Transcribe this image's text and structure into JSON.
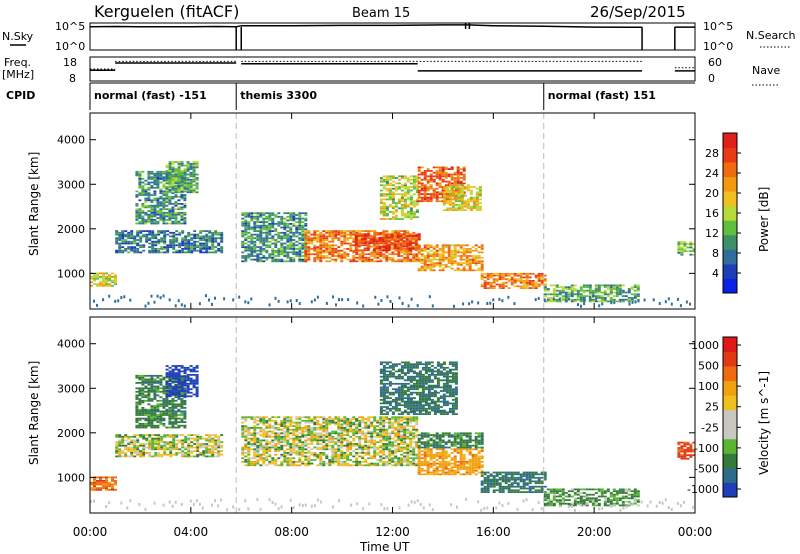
{
  "header": {
    "station": "Kerguelen (fitACF)",
    "beam": "Beam 15",
    "date": "26/Sep/2015"
  },
  "time_axis": {
    "label": "Time UT",
    "range_hours": [
      0,
      24
    ],
    "ticks": [
      {
        "h": 0,
        "label": "00:00"
      },
      {
        "h": 4,
        "label": "04:00"
      },
      {
        "h": 8,
        "label": "08:00"
      },
      {
        "h": 12,
        "label": "12:00"
      },
      {
        "h": 16,
        "label": "16:00"
      },
      {
        "h": 20,
        "label": "20:00"
      },
      {
        "h": 24,
        "label": "00:00"
      }
    ],
    "mode_boundaries_hours": [
      5.8,
      18.0
    ]
  },
  "noise_panel": {
    "left_label": "N.Sky",
    "right_label": "N.Search",
    "left_ticks": [
      "10^5",
      "10^0"
    ],
    "right_ticks": [
      "10^5",
      "10^0"
    ],
    "sky_level_fraction": [
      [
        0.0,
        0.86
      ],
      [
        1.0,
        0.87
      ],
      [
        2.0,
        0.86
      ],
      [
        3.0,
        0.86
      ],
      [
        4.0,
        0.86
      ],
      [
        5.0,
        0.87
      ],
      [
        5.8,
        0.86
      ],
      [
        6.0,
        0.9
      ],
      [
        8.0,
        0.9
      ],
      [
        10.0,
        0.91
      ],
      [
        12.0,
        0.91
      ],
      [
        14.0,
        0.93
      ],
      [
        15.0,
        0.93
      ],
      [
        16.0,
        0.9
      ],
      [
        18.0,
        0.88
      ],
      [
        20.0,
        0.85
      ],
      [
        21.9,
        0.84
      ]
    ],
    "gaps_hours": [
      [
        5.8,
        6.0
      ],
      [
        21.9,
        23.2
      ]
    ],
    "after_gap": [
      [
        23.2,
        0.85
      ],
      [
        24.0,
        0.85
      ]
    ]
  },
  "freq_panel": {
    "left_label": "Freq.",
    "left_unit": "[MHz]",
    "right_label": "Nave",
    "left_ticks": [
      "18",
      "8"
    ],
    "right_ticks": [
      "60",
      "0"
    ],
    "freq_segments": [
      {
        "from": 0.0,
        "to": 1.0,
        "level": 0.45
      },
      {
        "from": 1.0,
        "to": 5.8,
        "level": 0.75
      },
      {
        "from": 6.0,
        "to": 13.0,
        "level": 0.72
      },
      {
        "from": 13.0,
        "to": 21.9,
        "level": 0.42
      },
      {
        "from": 23.2,
        "to": 24.0,
        "level": 0.42
      }
    ],
    "nave_segments": [
      {
        "from": 0.0,
        "to": 1.0,
        "level": 0.5
      },
      {
        "from": 1.0,
        "to": 5.8,
        "level": 0.82
      },
      {
        "from": 6.0,
        "to": 21.9,
        "level": 0.82
      },
      {
        "from": 23.2,
        "to": 24.0,
        "level": 0.55
      }
    ]
  },
  "cpid": {
    "label": "CPID",
    "modes": [
      {
        "start_hour": 0.0,
        "text": "normal (fast) -151"
      },
      {
        "start_hour": 5.8,
        "text": "themis 3300"
      },
      {
        "start_hour": 18.0,
        "text": "normal (fast) 151"
      }
    ]
  },
  "chart_data": [
    {
      "type": "heatmap",
      "quantity": "Power",
      "ylabel": "Slant Range [km]",
      "ylim": [
        200,
        4600
      ],
      "yticks": [
        1000,
        2000,
        3000,
        4000
      ],
      "colorbar": {
        "label": "Power [dB]",
        "range": [
          0,
          32
        ],
        "ticks": [
          4,
          8,
          12,
          16,
          20,
          24,
          28
        ],
        "colors": [
          "#0a20e6",
          "#1c3fb8",
          "#2f6e9a",
          "#3c8f66",
          "#5fbf3c",
          "#b8d93a",
          "#f0c020",
          "#f09a10",
          "#f06a10",
          "#e83a14",
          "#e0201a"
        ]
      },
      "regions": [
        {
          "t": [
            0.0,
            1.0
          ],
          "r": [
            700,
            1000
          ],
          "v": 18
        },
        {
          "t": [
            1.0,
            5.2
          ],
          "r": [
            1450,
            1950
          ],
          "v": 8
        },
        {
          "t": [
            1.8,
            3.8
          ],
          "r": [
            2100,
            3300
          ],
          "v": 10
        },
        {
          "t": [
            3.0,
            4.3
          ],
          "r": [
            2800,
            3500
          ],
          "v": 12
        },
        {
          "t": [
            6.0,
            8.5
          ],
          "r": [
            1250,
            2350
          ],
          "v": 10
        },
        {
          "t": [
            8.5,
            13.0
          ],
          "r": [
            1250,
            1950
          ],
          "v": 24
        },
        {
          "t": [
            10.5,
            13.0
          ],
          "r": [
            1500,
            1900
          ],
          "v": 28
        },
        {
          "t": [
            11.5,
            13.0
          ],
          "r": [
            2200,
            3200
          ],
          "v": 16
        },
        {
          "t": [
            13.0,
            15.5
          ],
          "r": [
            1050,
            1650
          ],
          "v": 22
        },
        {
          "t": [
            13.0,
            14.8
          ],
          "r": [
            2600,
            3400
          ],
          "v": 26
        },
        {
          "t": [
            14.0,
            15.5
          ],
          "r": [
            2400,
            3000
          ],
          "v": 18
        },
        {
          "t": [
            15.5,
            18.0
          ],
          "r": [
            650,
            1000
          ],
          "v": 24
        },
        {
          "t": [
            18.0,
            21.8
          ],
          "r": [
            350,
            750
          ],
          "v": 12
        },
        {
          "t": [
            23.3,
            24.0
          ],
          "r": [
            1400,
            1700
          ],
          "v": 12
        }
      ]
    },
    {
      "type": "heatmap",
      "quantity": "Velocity",
      "ylabel": "Slant Range [km]",
      "ylim": [
        200,
        4600
      ],
      "yticks": [
        1000,
        2000,
        3000,
        4000
      ],
      "colorbar": {
        "label": "Velocity [m s^-1]",
        "ticks": [
          "1000",
          "500",
          "100",
          "25",
          "-25",
          "-100",
          "-500",
          "-1000"
        ],
        "colors": [
          "#1f3fb8",
          "#2c6b8a",
          "#357a3a",
          "#57b531",
          "#c8c8c0",
          "#c8c8c0",
          "#f0c020",
          "#f0a010",
          "#f06a10",
          "#e03a14",
          "#e01818"
        ]
      },
      "regions": [
        {
          "t": [
            0.0,
            1.0
          ],
          "r": [
            700,
            1000
          ],
          "v": -400
        },
        {
          "t": [
            1.0,
            5.2
          ],
          "r": [
            1450,
            1950
          ],
          "v": 0
        },
        {
          "t": [
            1.8,
            3.8
          ],
          "r": [
            2100,
            3300
          ],
          "v": 200
        },
        {
          "t": [
            3.0,
            4.3
          ],
          "r": [
            2800,
            3500
          ],
          "v": 900
        },
        {
          "t": [
            6.0,
            13.0
          ],
          "r": [
            1250,
            2350
          ],
          "v": 0
        },
        {
          "t": [
            11.5,
            14.5
          ],
          "r": [
            2400,
            3600
          ],
          "v": 300
        },
        {
          "t": [
            13.0,
            15.5
          ],
          "r": [
            1050,
            1650
          ],
          "v": -200
        },
        {
          "t": [
            13.0,
            15.5
          ],
          "r": [
            1650,
            2000
          ],
          "v": 200
        },
        {
          "t": [
            15.5,
            18.0
          ],
          "r": [
            650,
            1100
          ],
          "v": 300
        },
        {
          "t": [
            18.0,
            21.8
          ],
          "r": [
            350,
            750
          ],
          "v": 150
        },
        {
          "t": [
            23.3,
            24.0
          ],
          "r": [
            1400,
            1800
          ],
          "v": -600
        }
      ]
    }
  ]
}
